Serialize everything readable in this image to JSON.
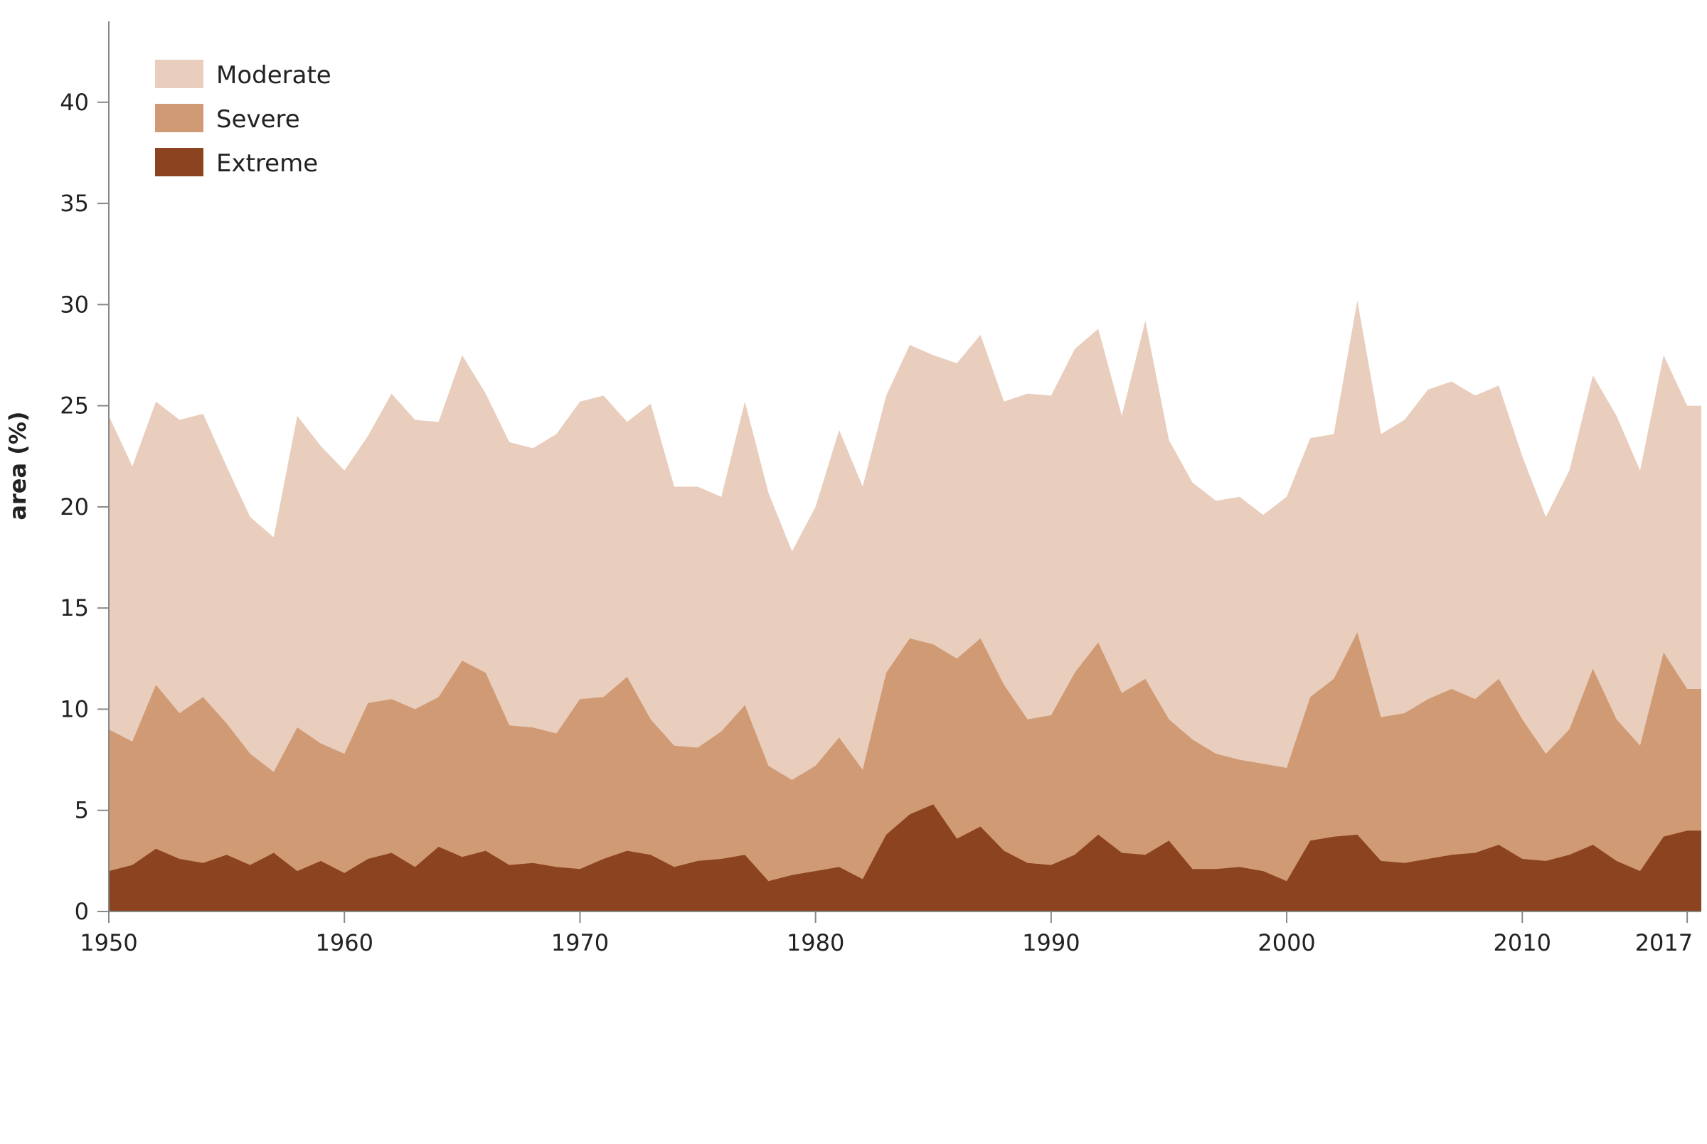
{
  "chart_data": {
    "type": "area",
    "stacked": false,
    "ylabel": "area (%)",
    "xlabel": "",
    "xlim": [
      1950,
      2017.6
    ],
    "ylim": [
      0,
      44
    ],
    "x_ticks": [
      1950,
      1960,
      1970,
      1980,
      1990,
      2000,
      2010,
      2017
    ],
    "x_tick_labels": [
      "1950",
      "1960",
      "1970",
      "1980",
      "1990",
      "2000",
      "2010",
      "2017"
    ],
    "y_ticks": [
      0,
      5,
      10,
      15,
      20,
      25,
      30,
      35,
      40
    ],
    "y_tick_labels": [
      "0",
      "5",
      "10",
      "15",
      "20",
      "25",
      "30",
      "35",
      "40"
    ],
    "grid": false,
    "legend_position": "top-left",
    "x": [
      1950,
      1951,
      1952,
      1953,
      1954,
      1955,
      1956,
      1957,
      1958,
      1959,
      1960,
      1961,
      1962,
      1963,
      1964,
      1965,
      1966,
      1967,
      1968,
      1969,
      1970,
      1971,
      1972,
      1973,
      1974,
      1975,
      1976,
      1977,
      1978,
      1979,
      1980,
      1981,
      1982,
      1983,
      1984,
      1985,
      1986,
      1987,
      1988,
      1989,
      1990,
      1991,
      1992,
      1993,
      1994,
      1995,
      1996,
      1997,
      1998,
      1999,
      2000,
      2001,
      2002,
      2003,
      2004,
      2005,
      2006,
      2007,
      2008,
      2009,
      2010,
      2011,
      2012,
      2013,
      2014,
      2015,
      2016,
      2017
    ],
    "series": [
      {
        "name": "Moderate",
        "color": "#e9cdbd",
        "values": [
          24.5,
          22.0,
          25.2,
          24.3,
          24.6,
          22.0,
          19.5,
          18.5,
          24.5,
          23.0,
          21.8,
          23.5,
          25.6,
          24.3,
          24.2,
          27.5,
          25.6,
          23.2,
          22.9,
          23.6,
          25.2,
          25.5,
          24.2,
          25.1,
          21.0,
          21.0,
          20.5,
          25.2,
          20.7,
          17.8,
          20.0,
          23.8,
          21.0,
          25.5,
          28.0,
          27.5,
          27.1,
          28.5,
          25.2,
          25.6,
          25.5,
          27.8,
          28.8,
          24.5,
          29.2,
          23.3,
          21.2,
          20.3,
          20.5,
          19.6,
          20.5,
          23.4,
          23.6,
          30.2,
          23.6,
          24.3,
          25.8,
          26.2,
          25.5,
          26.0,
          22.5,
          19.5,
          21.8,
          26.5,
          24.5,
          21.8,
          27.5,
          25.0
        ]
      },
      {
        "name": "Severe",
        "color": "#d09b74",
        "values": [
          9.0,
          8.4,
          11.2,
          9.8,
          10.6,
          9.3,
          7.8,
          6.9,
          9.1,
          8.3,
          7.8,
          10.3,
          10.5,
          10.0,
          10.6,
          12.4,
          11.8,
          9.2,
          9.1,
          8.8,
          10.5,
          10.6,
          11.6,
          9.5,
          8.2,
          8.1,
          8.9,
          10.2,
          7.2,
          6.5,
          7.2,
          8.6,
          7.0,
          11.8,
          13.5,
          13.2,
          12.5,
          13.5,
          11.2,
          9.5,
          9.7,
          11.8,
          13.3,
          10.8,
          11.5,
          9.5,
          8.5,
          7.8,
          7.5,
          7.3,
          7.1,
          10.6,
          11.5,
          13.8,
          9.6,
          9.8,
          10.5,
          11.0,
          10.5,
          11.5,
          9.5,
          7.8,
          9.0,
          12.0,
          9.5,
          8.2,
          12.8,
          11.0
        ]
      },
      {
        "name": "Extreme",
        "color": "#8b441f",
        "values": [
          2.0,
          2.3,
          3.1,
          2.6,
          2.4,
          2.8,
          2.3,
          2.9,
          2.0,
          2.5,
          1.9,
          2.6,
          2.9,
          2.2,
          3.2,
          2.7,
          3.0,
          2.3,
          2.4,
          2.2,
          2.1,
          2.6,
          3.0,
          2.8,
          2.2,
          2.5,
          2.6,
          2.8,
          1.5,
          1.8,
          2.0,
          2.2,
          1.6,
          3.8,
          4.8,
          5.3,
          3.6,
          4.2,
          3.0,
          2.4,
          2.3,
          2.8,
          3.8,
          2.9,
          2.8,
          3.5,
          2.1,
          2.1,
          2.2,
          2.0,
          1.5,
          3.5,
          3.7,
          3.8,
          2.5,
          2.4,
          2.6,
          2.8,
          2.9,
          3.3,
          2.6,
          2.5,
          2.8,
          3.3,
          2.5,
          2.0,
          3.7,
          4.0
        ]
      }
    ]
  }
}
